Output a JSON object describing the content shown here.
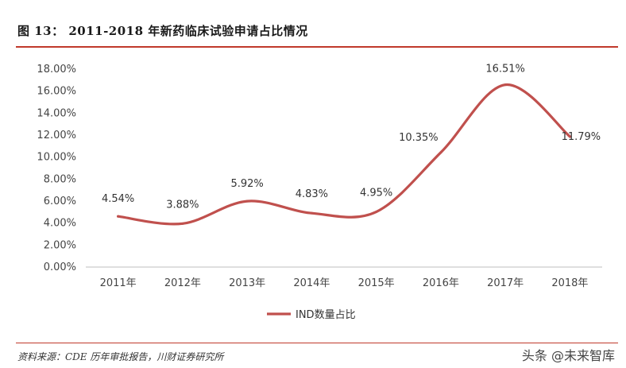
{
  "header": {
    "title": "图 13：  2011-2018 年新药临床试验申请占比情况"
  },
  "footer": {
    "source": "资料来源：CDE 历年审批报告，川财证券研究所",
    "watermark": "头条 @未来智库"
  },
  "colors": {
    "accent": "#c0392b",
    "line": "#c0504d"
  },
  "chart_data": {
    "type": "line",
    "categories": [
      "2011年",
      "2012年",
      "2013年",
      "2014年",
      "2015年",
      "2016年",
      "2017年",
      "2018年"
    ],
    "series": [
      {
        "name": "IND数量占比",
        "values": [
          4.54,
          3.88,
          5.92,
          4.83,
          4.95,
          10.35,
          16.51,
          11.79
        ]
      }
    ],
    "data_labels": [
      "4.54%",
      "3.88%",
      "5.92%",
      "4.83%",
      "4.95%",
      "10.35%",
      "16.51%",
      "11.79%"
    ],
    "y_ticks": [
      "0.00%",
      "2.00%",
      "4.00%",
      "6.00%",
      "8.00%",
      "10.00%",
      "12.00%",
      "14.00%",
      "16.00%",
      "18.00%"
    ],
    "ylim": [
      0,
      18
    ],
    "grid": false,
    "smooth": true,
    "legend": {
      "position": "bottom",
      "label": "IND数量占比"
    }
  }
}
